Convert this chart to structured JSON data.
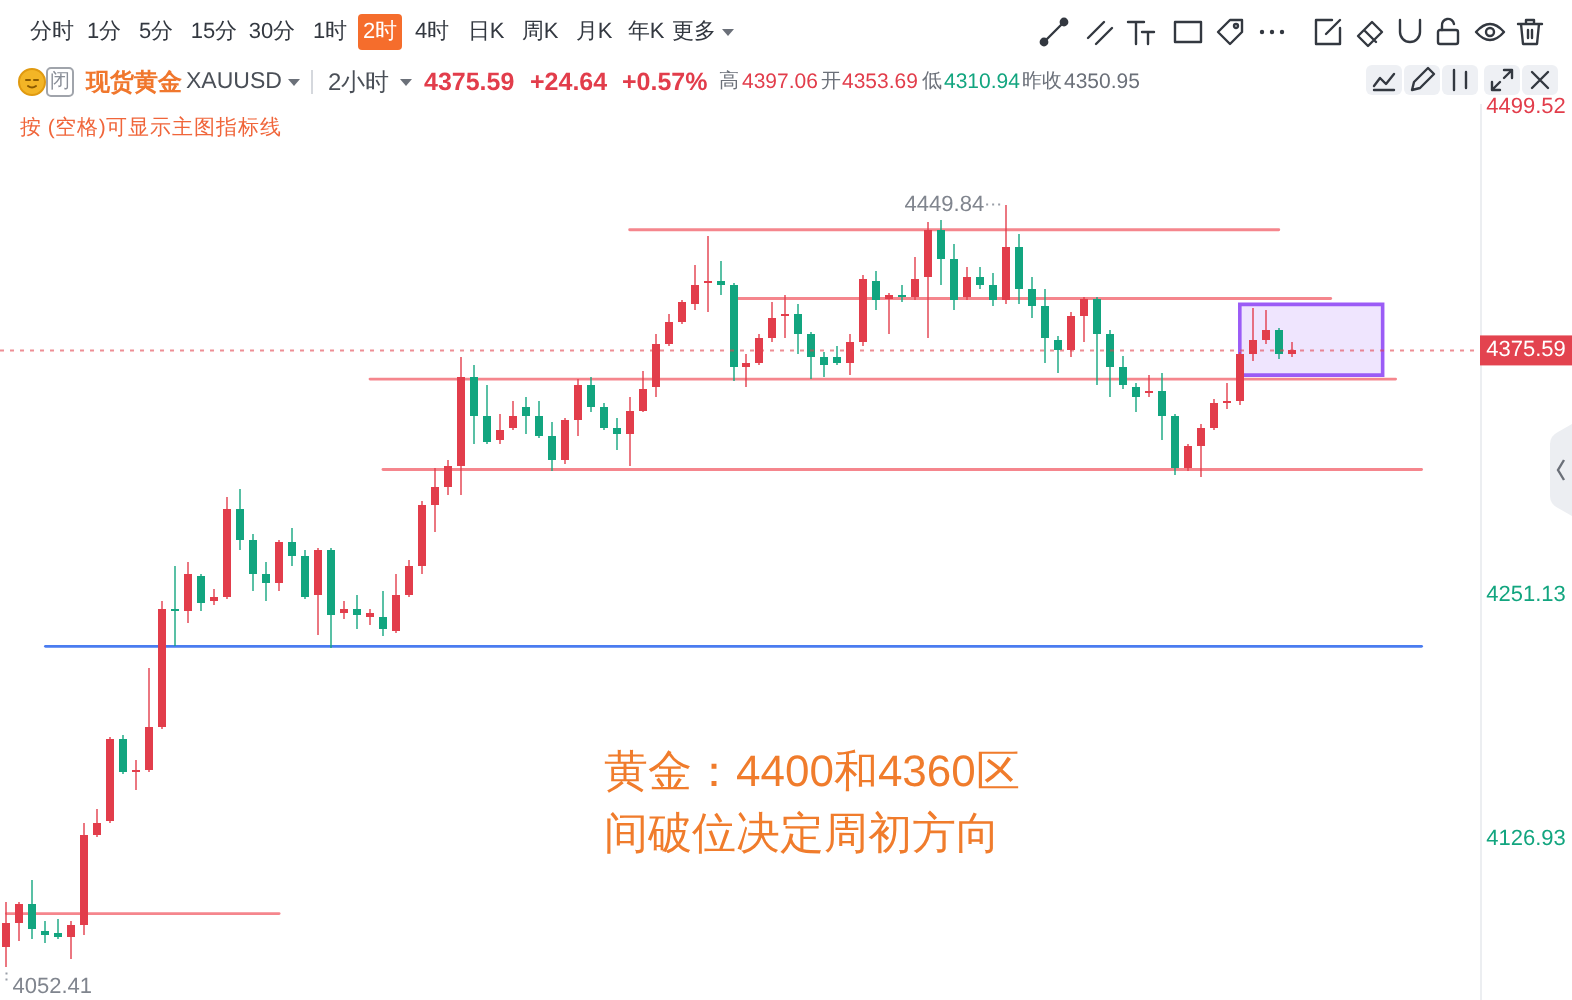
{
  "chart_data": {
    "type": "candlestick",
    "title": "现货黄金",
    "subtitle": "XAUUSD",
    "categories": [
      null,
      null,
      null,
      null,
      null,
      null,
      null,
      null,
      null,
      null,
      null,
      null,
      null,
      null,
      null,
      null,
      null,
      null,
      null,
      null,
      null,
      null,
      null,
      null,
      null,
      null,
      null,
      null,
      null,
      null,
      null,
      null,
      null,
      null,
      null,
      null,
      null,
      null,
      null,
      null,
      null,
      null,
      null,
      null,
      null,
      null,
      null,
      null,
      null,
      null,
      null,
      null,
      null,
      null,
      null,
      null,
      null,
      null,
      null,
      null,
      null,
      null,
      null,
      null,
      null,
      null,
      null,
      null,
      null,
      null,
      null,
      null,
      null,
      null,
      null,
      null,
      null,
      null,
      null,
      null,
      null,
      null,
      null,
      null,
      null,
      null,
      null,
      null,
      null,
      null,
      null,
      null,
      null,
      null,
      null,
      null,
      null,
      null,
      null,
      null,
      null,
      null,
      null,
      null,
      null,
      null,
      null,
      null,
      null,
      null,
      null,
      null,
      null,
      null
    ],
    "ohlc": [
      [
        4072,
        4095,
        4062,
        4084
      ],
      [
        4084,
        4095,
        4075,
        4094
      ],
      [
        4094,
        4106,
        4076,
        4081
      ],
      [
        4080,
        4085,
        4074,
        4078
      ],
      [
        4079,
        4086,
        4076,
        4077
      ],
      [
        4077,
        4085,
        4066,
        4083
      ],
      [
        4083,
        4135,
        4078,
        4129
      ],
      [
        4129,
        4142,
        4128,
        4135
      ],
      [
        4136,
        4179,
        4135,
        4178
      ],
      [
        4178,
        4180,
        4160,
        4161
      ],
      [
        4161,
        4167,
        4152,
        4162
      ],
      [
        4162,
        4214,
        4161,
        4184
      ],
      [
        4184,
        4248,
        4183,
        4244
      ],
      [
        4244,
        4266,
        4225,
        4243
      ],
      [
        4243,
        4268,
        4237,
        4262
      ],
      [
        4261,
        4262,
        4243,
        4247
      ],
      [
        4248,
        4254,
        4246,
        4250
      ],
      [
        4250,
        4301,
        4249,
        4295
      ],
      [
        4295,
        4305,
        4274,
        4279
      ],
      [
        4279,
        4282,
        4253,
        4262
      ],
      [
        4262,
        4268,
        4248,
        4257
      ],
      [
        4257,
        4279,
        4253,
        4278
      ],
      [
        4278,
        4285,
        4266,
        4271
      ],
      [
        4271,
        4274,
        4249,
        4250
      ],
      [
        4251,
        4275,
        4231,
        4274
      ],
      [
        4274,
        4275,
        4224,
        4241
      ],
      [
        4242,
        4248,
        4239,
        4244
      ],
      [
        4244,
        4251,
        4234,
        4241
      ],
      [
        4240,
        4244,
        4236,
        4242
      ],
      [
        4240,
        4253,
        4230,
        4234
      ],
      [
        4233,
        4262,
        4232,
        4251
      ],
      [
        4251,
        4269,
        4250,
        4266
      ],
      [
        4266,
        4299,
        4262,
        4297
      ],
      [
        4297,
        4316,
        4283,
        4306
      ],
      [
        4306,
        4320,
        4302,
        4317
      ],
      [
        4317,
        4372,
        4302,
        4362
      ],
      [
        4362,
        4368,
        4328,
        4342
      ],
      [
        4342,
        4358,
        4328,
        4329
      ],
      [
        4330,
        4343,
        4328,
        4335
      ],
      [
        4336,
        4350,
        4335,
        4342
      ],
      [
        4347,
        4352,
        4333,
        4342
      ],
      [
        4342,
        4350,
        4331,
        4332
      ],
      [
        4332,
        4339,
        4314,
        4320
      ],
      [
        4320,
        4341,
        4318,
        4340
      ],
      [
        4340,
        4361,
        4332,
        4358
      ],
      [
        4358,
        4362,
        4344,
        4347
      ],
      [
        4347,
        4349,
        4335,
        4336
      ],
      [
        4336,
        4341,
        4325,
        4333
      ],
      [
        4333,
        4352,
        4317,
        4345
      ],
      [
        4345,
        4365,
        4344,
        4356
      ],
      [
        4357,
        4384,
        4352,
        4379
      ],
      [
        4379,
        4394,
        4378,
        4390
      ],
      [
        4390,
        4401,
        4389,
        4400
      ],
      [
        4399,
        4419,
        4396,
        4409
      ],
      [
        4410,
        4434,
        4395,
        4411
      ],
      [
        4411,
        4421,
        4404,
        4409
      ],
      [
        4409,
        4410,
        4360,
        4367
      ],
      [
        4367,
        4374,
        4357,
        4369
      ],
      [
        4369,
        4384,
        4368,
        4382
      ],
      [
        4382,
        4400,
        4380,
        4392
      ],
      [
        4393,
        4404,
        4382,
        4394
      ],
      [
        4394,
        4399,
        4374,
        4384
      ],
      [
        4384,
        4385,
        4361,
        4372
      ],
      [
        4372,
        4375,
        4362,
        4368
      ],
      [
        4372,
        4378,
        4368,
        4369
      ],
      [
        4369,
        4384,
        4363,
        4380
      ],
      [
        4380,
        4414,
        4378,
        4412
      ],
      [
        4411,
        4416,
        4396,
        4401
      ],
      [
        4402,
        4405,
        4384,
        4404
      ],
      [
        4404,
        4409,
        4400,
        4403
      ],
      [
        4403,
        4423,
        4401,
        4412
      ],
      [
        4413,
        4441,
        4382,
        4437
      ],
      [
        4437,
        4442,
        4409,
        4422
      ],
      [
        4422,
        4430,
        4396,
        4401
      ],
      [
        4403,
        4418,
        4401,
        4413
      ],
      [
        4413,
        4418,
        4407,
        4409
      ],
      [
        4409,
        4415,
        4398,
        4401
      ],
      [
        4401,
        4449.84,
        4399,
        4428
      ],
      [
        4428,
        4435,
        4399,
        4407
      ],
      [
        4407,
        4413,
        4392,
        4398
      ],
      [
        4398,
        4407,
        4369,
        4382
      ],
      [
        4381,
        4383,
        4364,
        4376
      ],
      [
        4376,
        4395,
        4372,
        4393
      ],
      [
        4393,
        4403,
        4380,
        4402
      ],
      [
        4402,
        4403,
        4358,
        4384
      ],
      [
        4384,
        4386,
        4352,
        4367
      ],
      [
        4367,
        4373,
        4356,
        4358
      ],
      [
        4357,
        4359,
        4344,
        4352
      ],
      [
        4354,
        4363,
        4352,
        4355
      ],
      [
        4355,
        4364,
        4330,
        4342
      ],
      [
        4342,
        4343,
        4312,
        4316
      ],
      [
        4316,
        4328,
        4314,
        4327
      ],
      [
        4327,
        4338,
        4311,
        4336
      ],
      [
        4336,
        4351,
        4335,
        4349
      ],
      [
        4349,
        4359,
        4346,
        4350
      ],
      [
        4350,
        4375,
        4348,
        4374
      ],
      [
        4374,
        4397,
        4370,
        4381
      ],
      [
        4381,
        4396,
        4379,
        4386
      ],
      [
        4386,
        4387,
        4371,
        4374
      ],
      [
        4374,
        4380,
        4372,
        4375.59
      ],
      null,
      null,
      null,
      null,
      null,
      null,
      null,
      null,
      null,
      null,
      null,
      null,
      null,
      null
    ],
    "colors": [
      "#e23d4b",
      "#e23d4b",
      "#12a57f",
      "#12a57f",
      "#12a57f",
      "#e23d4b",
      "#e23d4b",
      "#e23d4b",
      "#e23d4b",
      "#12a57f",
      "#e23d4b",
      "#e23d4b",
      "#e23d4b",
      "#12a57f",
      "#e23d4b",
      "#12a57f",
      "#e23d4b",
      "#e23d4b",
      "#12a57f",
      "#12a57f",
      "#12a57f",
      "#e23d4b",
      "#12a57f",
      "#12a57f",
      "#e23d4b",
      "#12a57f",
      "#e23d4b",
      "#12a57f",
      "#e23d4b",
      "#12a57f",
      "#e23d4b",
      "#e23d4b",
      "#e23d4b",
      "#e23d4b",
      "#e23d4b",
      "#e23d4b",
      "#12a57f",
      "#12a57f",
      "#e23d4b",
      "#e23d4b",
      "#12a57f",
      "#12a57f",
      "#12a57f",
      "#e23d4b",
      "#e23d4b",
      "#12a57f",
      "#12a57f",
      "#12a57f",
      "#e23d4b",
      "#e23d4b",
      "#e23d4b",
      "#e23d4b",
      "#e23d4b",
      "#e23d4b",
      "#e23d4b",
      "#12a57f",
      "#12a57f",
      "#e23d4b",
      "#e23d4b",
      "#e23d4b",
      "#e23d4b",
      "#12a57f",
      "#12a57f",
      "#12a57f",
      "#12a57f",
      "#e23d4b",
      "#e23d4b",
      "#12a57f",
      "#e23d4b",
      "#12a57f",
      "#e23d4b",
      "#e23d4b",
      "#12a57f",
      "#12a57f",
      "#e23d4b",
      "#12a57f",
      "#12a57f",
      "#e23d4b",
      "#12a57f",
      "#12a57f",
      "#12a57f",
      "#12a57f",
      "#e23d4b",
      "#e23d4b",
      "#12a57f",
      "#12a57f",
      "#12a57f",
      "#12a57f",
      "#e23d4b",
      "#12a57f",
      "#12a57f",
      "#e23d4b",
      "#e23d4b",
      "#e23d4b",
      "#e23d4b",
      "#e23d4b",
      "#e23d4b",
      "#e23d4b",
      "#12a57f",
      "#e23d4b",
      null,
      null,
      null,
      null,
      null,
      null,
      null,
      null,
      null,
      null,
      null,
      null,
      null,
      null
    ],
    "series": [
      {
        "type": "line",
        "color": "#f5868d",
        "values": [
          4089,
          4089,
          4089,
          4089,
          4089,
          4089,
          4089,
          4089,
          4089,
          4089,
          4089,
          4089,
          4089,
          4089,
          4089,
          4089,
          4089,
          4089,
          4089,
          4089,
          4089,
          4089,
          null,
          null,
          null,
          null,
          null,
          null,
          null,
          null,
          null,
          null,
          null,
          null,
          null,
          null,
          null,
          null,
          null,
          null,
          null,
          null,
          null,
          null,
          null,
          null,
          null,
          null,
          null,
          null,
          null,
          null,
          null,
          null,
          null,
          null,
          null,
          null,
          null,
          null,
          null,
          null,
          null,
          null,
          null,
          null,
          null,
          null,
          null,
          null,
          null,
          null,
          null,
          null,
          null,
          null,
          null,
          null,
          null,
          null,
          null,
          null,
          null,
          null,
          null,
          null,
          null,
          null,
          null,
          null,
          null,
          null,
          null,
          null,
          null,
          null,
          null,
          null,
          null,
          null,
          null,
          null,
          null,
          null,
          null,
          null,
          null,
          null,
          null,
          null,
          null,
          null,
          null,
          null
        ]
      },
      {
        "type": "line",
        "color": "#f5868d",
        "values": [
          null,
          null,
          null,
          null,
          null,
          null,
          null,
          null,
          null,
          null,
          null,
          null,
          null,
          null,
          null,
          null,
          null,
          null,
          null,
          null,
          null,
          null,
          null,
          null,
          null,
          null,
          null,
          null,
          4361,
          4361,
          4361,
          4361,
          4361,
          4361,
          4361,
          4361,
          4361,
          4361,
          4361,
          4361,
          4361,
          4361,
          4361,
          4361,
          4361,
          4361,
          4361,
          4361,
          4361,
          4361,
          4361,
          4361,
          4361,
          4361,
          4361,
          4361,
          4361,
          4361,
          4361,
          4361,
          4361,
          4361,
          4361,
          4361,
          4361,
          4361,
          4361,
          4361,
          4361,
          4361,
          4361,
          4361,
          4361,
          4361,
          4361,
          4361,
          4361,
          4361,
          4361,
          4361,
          4361,
          4361,
          4361,
          4361,
          4361,
          4361,
          4361,
          4361,
          4361,
          4361,
          4361,
          4361,
          4361,
          4361,
          4361,
          4361,
          4361,
          4361,
          4361,
          4361,
          4361,
          4361,
          4361,
          4361,
          4361,
          4361,
          4361,
          4361,
          null,
          null,
          null,
          null,
          null,
          null
        ]
      },
      {
        "type": "line",
        "color": "#f5868d",
        "values": [
          null,
          null,
          null,
          null,
          null,
          null,
          null,
          null,
          null,
          null,
          null,
          null,
          null,
          null,
          null,
          null,
          null,
          null,
          null,
          null,
          null,
          null,
          null,
          null,
          null,
          null,
          null,
          null,
          null,
          4315,
          4315,
          4315,
          4315,
          4315,
          4315,
          4315,
          4315,
          4315,
          4315,
          4315,
          4315,
          4315,
          4315,
          4315,
          4315,
          4315,
          4315,
          4315,
          4315,
          4315,
          4315,
          4315,
          4315,
          4315,
          4315,
          4315,
          4315,
          4315,
          4315,
          4315,
          4315,
          4315,
          4315,
          4315,
          4315,
          4315,
          4315,
          4315,
          4315,
          4315,
          4315,
          4315,
          4315,
          4315,
          4315,
          4315,
          4315,
          4315,
          4315,
          4315,
          4315,
          4315,
          4315,
          4315,
          4315,
          4315,
          4315,
          4315,
          4315,
          4315,
          4315,
          4315,
          4315,
          4315,
          4315,
          4315,
          4315,
          4315,
          4315,
          4315,
          4315,
          4315,
          4315,
          4315,
          4315,
          4315,
          4315,
          4315,
          4315,
          4315,
          null,
          null,
          null,
          null
        ]
      },
      {
        "type": "line",
        "color": "#4a7cf0",
        "values": [
          null,
          null,
          null,
          4225,
          4225,
          4225,
          4225,
          4225,
          4225,
          4225,
          4225,
          4225,
          4225,
          4225,
          4225,
          4225,
          4225,
          4225,
          4225,
          4225,
          4225,
          4225,
          4225,
          4225,
          4225,
          4225,
          4225,
          4225,
          4225,
          4225,
          4225,
          4225,
          4225,
          4225,
          4225,
          4225,
          4225,
          4225,
          4225,
          4225,
          4225,
          4225,
          4225,
          4225,
          4225,
          4225,
          4225,
          4225,
          4225,
          4225,
          4225,
          4225,
          4225,
          4225,
          4225,
          4225,
          4225,
          4225,
          4225,
          4225,
          4225,
          4225,
          4225,
          4225,
          4225,
          4225,
          4225,
          4225,
          4225,
          4225,
          4225,
          4225,
          4225,
          4225,
          4225,
          4225,
          4225,
          4225,
          4225,
          4225,
          4225,
          4225,
          4225,
          4225,
          4225,
          4225,
          4225,
          4225,
          4225,
          4225,
          4225,
          4225,
          4225,
          4225,
          4225,
          4225,
          4225,
          4225,
          4225,
          4225,
          4225,
          4225,
          4225,
          4225,
          4225,
          4225,
          4225,
          4225,
          4225,
          4225,
          null,
          null,
          null,
          null
        ]
      },
      {
        "type": "line",
        "color": "#f5868d",
        "values": [
          null,
          null,
          null,
          null,
          null,
          null,
          null,
          null,
          null,
          null,
          null,
          null,
          null,
          null,
          null,
          null,
          null,
          null,
          null,
          null,
          null,
          null,
          null,
          null,
          null,
          null,
          null,
          null,
          null,
          null,
          null,
          null,
          null,
          null,
          null,
          null,
          null,
          null,
          null,
          null,
          null,
          null,
          null,
          null,
          null,
          null,
          null,
          null,
          4437,
          4437,
          4437,
          4437,
          4437,
          4437,
          4437,
          4437,
          4437,
          4437,
          4437,
          4437,
          4437,
          4437,
          4437,
          4437,
          4437,
          4437,
          4437,
          4437,
          4437,
          4437,
          4437,
          4437,
          4437,
          4437,
          4437,
          4437,
          4437,
          4437,
          4437,
          4437,
          4437,
          4437,
          4437,
          4437,
          4437,
          4437,
          4437,
          4437,
          4437,
          4437,
          4437,
          4437,
          4437,
          4437,
          4437,
          4437,
          4437,
          4437,
          4437,
          null,
          null,
          null,
          null,
          null,
          null,
          null,
          null,
          null,
          null,
          null,
          null,
          null,
          null,
          null
        ]
      },
      {
        "type": "line",
        "color": "#f5868d",
        "values": [
          null,
          null,
          null,
          null,
          null,
          null,
          null,
          null,
          null,
          null,
          null,
          null,
          null,
          null,
          null,
          null,
          null,
          null,
          null,
          null,
          null,
          null,
          null,
          null,
          null,
          null,
          null,
          null,
          null,
          null,
          null,
          null,
          null,
          null,
          null,
          null,
          null,
          null,
          null,
          null,
          null,
          null,
          null,
          null,
          null,
          null,
          null,
          null,
          null,
          null,
          null,
          null,
          null,
          null,
          null,
          null,
          4402,
          4402,
          4402,
          4402,
          4402,
          4402,
          4402,
          4402,
          4402,
          4402,
          4402,
          4402,
          4402,
          4402,
          4402,
          4402,
          4402,
          4402,
          4402,
          4402,
          4402,
          4402,
          4402,
          4402,
          4402,
          4402,
          4402,
          4402,
          4402,
          4402,
          4402,
          4402,
          4402,
          4402,
          4402,
          4402,
          4402,
          4402,
          4402,
          4402,
          4402,
          4402,
          4402,
          4402,
          4402,
          4402,
          4402,
          null,
          null,
          null,
          null,
          null,
          null,
          null,
          null,
          null,
          null,
          null
        ]
      },
      {
        "type": "line",
        "color": "#9b5cf6",
        "values": [
          null,
          null,
          null,
          null,
          null,
          null,
          null,
          null,
          null,
          null,
          null,
          null,
          null,
          null,
          null,
          null,
          null,
          null,
          null,
          null,
          null,
          null,
          null,
          null,
          null,
          null,
          null,
          null,
          null,
          null,
          null,
          null,
          null,
          null,
          null,
          null,
          null,
          null,
          null,
          null,
          null,
          null,
          null,
          null,
          null,
          null,
          null,
          null,
          null,
          null,
          null,
          null,
          null,
          null,
          null,
          null,
          null,
          null,
          null,
          null,
          null,
          null,
          null,
          null,
          null,
          null,
          null,
          null,
          null,
          null,
          null,
          null,
          null,
          null,
          null,
          null,
          null,
          null,
          null,
          null,
          null,
          null,
          null,
          null,
          null,
          null,
          null,
          null,
          null,
          null,
          null,
          null,
          null,
          null,
          null,
          null,
          null,
          null,
          null,
          null,
          null,
          null,
          null,
          null,
          null,
          null,
          null,
          null,
          null,
          null,
          null,
          null,
          null,
          null
        ],
        "lower": [
          null,
          null,
          null,
          null,
          null,
          null,
          null,
          null,
          null,
          null,
          null,
          null,
          null,
          null,
          null,
          null,
          null,
          null,
          null,
          null,
          null,
          null,
          null,
          null,
          null,
          null,
          null,
          null,
          null,
          null,
          null,
          null,
          null,
          null,
          null,
          null,
          null,
          null,
          null,
          null,
          null,
          null,
          null,
          null,
          null,
          null,
          null,
          null,
          null,
          null,
          null,
          null,
          null,
          null,
          null,
          null,
          null,
          null,
          null,
          null,
          null,
          null,
          null,
          null,
          null,
          null,
          null,
          null,
          null,
          null,
          null,
          null,
          null,
          null,
          null,
          null,
          null,
          null,
          null,
          null,
          null,
          null,
          null,
          null,
          null,
          null,
          null,
          null,
          null,
          null,
          null,
          null,
          null,
          null,
          null,
          4363,
          4363,
          4363,
          4363,
          4363,
          4363,
          4363,
          4363,
          4363,
          4363,
          4363,
          4363,
          null,
          null,
          null,
          null,
          null,
          null,
          null
        ],
        "upper": [
          null,
          null,
          null,
          null,
          null,
          null,
          null,
          null,
          null,
          null,
          null,
          null,
          null,
          null,
          null,
          null,
          null,
          null,
          null,
          null,
          null,
          null,
          null,
          null,
          null,
          null,
          null,
          null,
          null,
          null,
          null,
          null,
          null,
          null,
          null,
          null,
          null,
          null,
          null,
          null,
          null,
          null,
          null,
          null,
          null,
          null,
          null,
          null,
          null,
          null,
          null,
          null,
          null,
          null,
          null,
          null,
          null,
          null,
          null,
          null,
          null,
          null,
          null,
          null,
          null,
          null,
          null,
          null,
          null,
          null,
          null,
          null,
          null,
          null,
          null,
          null,
          null,
          null,
          null,
          null,
          null,
          null,
          null,
          null,
          null,
          null,
          null,
          null,
          null,
          null,
          null,
          null,
          null,
          null,
          null,
          4399,
          4399,
          4399,
          4399,
          4399,
          4399,
          4399,
          4399,
          4399,
          4399,
          4399,
          4399,
          null,
          null,
          null,
          null,
          null,
          null,
          null
        ]
      }
    ],
    "ylim": [
      4045,
      4501
    ],
    "yticks": [
      4126.93,
      4251.13,
      4499.52
    ],
    "tick_labels": "y",
    "ref_lines": [
      {
        "axis": "y",
        "value": 4375.59,
        "label": "4375.59",
        "color": "#e3434f",
        "line_style": "dotted"
      }
    ],
    "annotations": [
      "分时",
      "1分",
      "5分",
      "15分",
      "30分",
      "1时",
      "2时",
      "4时",
      "日K",
      "周K",
      "月K",
      "年K",
      "更多",
      "闭",
      "2小时",
      "4375.59",
      "+24.64",
      "+0.57%",
      "高",
      "4397.06",
      "开",
      "4353.69",
      "低",
      "4310.94",
      "昨收",
      "4350.95",
      "按 (空格)可显示主图指标线",
      "4449.84",
      "4052.41",
      "黄金：4400和4360区间破位决定周初方向"
    ]
  }
}
